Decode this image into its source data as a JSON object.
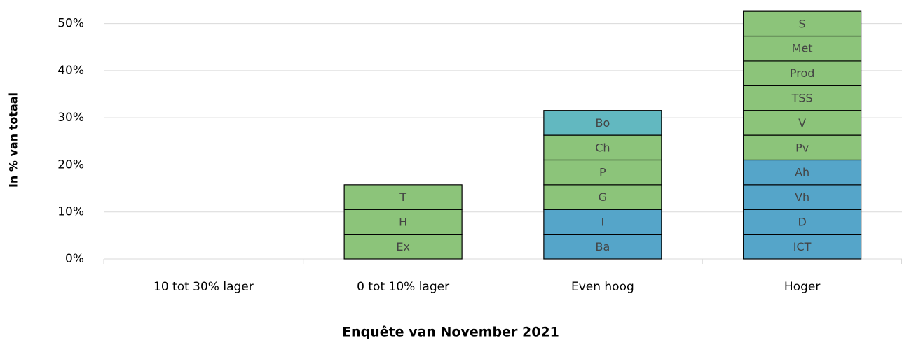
{
  "chart_data": {
    "type": "stacked_bar",
    "x_label": "Enquête van November 2021",
    "y_label": "In % van totaal",
    "categories": [
      "10 tot 30% lager",
      "0 tot 10% lager",
      "Even hoog",
      "Hoger"
    ],
    "stacks": [
      {
        "segments": []
      },
      {
        "segments": [
          {
            "name": "Ex",
            "value": 5.26,
            "color": "#8cc47a"
          },
          {
            "name": "H",
            "value": 5.26,
            "color": "#8cc47a"
          },
          {
            "name": "T",
            "value": 5.26,
            "color": "#8cc47a"
          }
        ]
      },
      {
        "segments": [
          {
            "name": "Ba",
            "value": 5.26,
            "color": "#55a5c9"
          },
          {
            "name": "I",
            "value": 5.26,
            "color": "#55a5c9"
          },
          {
            "name": "G",
            "value": 5.26,
            "color": "#8cc47a"
          },
          {
            "name": "P",
            "value": 5.26,
            "color": "#8cc47a"
          },
          {
            "name": "Ch",
            "value": 5.26,
            "color": "#8cc47a"
          },
          {
            "name": "Bo",
            "value": 5.26,
            "color": "#62b8c0"
          }
        ]
      },
      {
        "segments": [
          {
            "name": "ICT",
            "value": 5.26,
            "color": "#55a5c9"
          },
          {
            "name": "D",
            "value": 5.26,
            "color": "#55a5c9"
          },
          {
            "name": "Vh",
            "value": 5.26,
            "color": "#55a5c9"
          },
          {
            "name": "Ah",
            "value": 5.26,
            "color": "#55a5c9"
          },
          {
            "name": "Pv",
            "value": 5.26,
            "color": "#8cc47a"
          },
          {
            "name": "V",
            "value": 5.26,
            "color": "#8cc47a"
          },
          {
            "name": "TSS",
            "value": 5.26,
            "color": "#8cc47a"
          },
          {
            "name": "Prod",
            "value": 5.26,
            "color": "#8cc47a"
          },
          {
            "name": "Met",
            "value": 5.26,
            "color": "#8cc47a"
          },
          {
            "name": "S",
            "value": 5.26,
            "color": "#8cc47a"
          }
        ]
      }
    ],
    "ylim": [
      0,
      55
    ],
    "yticks": [
      {
        "value": 0,
        "label": "0%"
      },
      {
        "value": 10,
        "label": "10%"
      },
      {
        "value": 20,
        "label": "20%"
      },
      {
        "value": 30,
        "label": "30%"
      },
      {
        "value": 40,
        "label": "40%"
      },
      {
        "value": 50,
        "label": "50%"
      }
    ],
    "grid": true
  }
}
